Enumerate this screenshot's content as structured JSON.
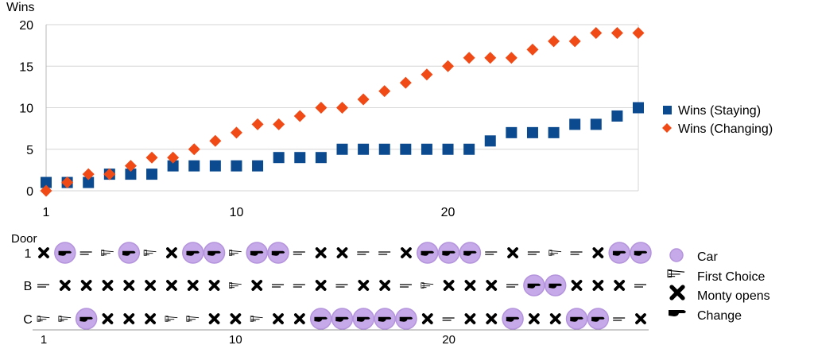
{
  "chart_data": [
    {
      "type": "scatter",
      "ylabel": "Wins",
      "xlim": [
        1,
        29
      ],
      "ylim": [
        0,
        20
      ],
      "xticks": [
        1,
        10,
        20
      ],
      "yticks": [
        0,
        5,
        10,
        15,
        20
      ],
      "grid": "horizontal",
      "legend_position": "right",
      "x": [
        1,
        2,
        3,
        4,
        5,
        6,
        7,
        8,
        9,
        10,
        11,
        12,
        13,
        14,
        15,
        16,
        17,
        18,
        19,
        20,
        21,
        22,
        23,
        24,
        25,
        26,
        27,
        28,
        29
      ],
      "series": [
        {
          "name": "Wins (Staying)",
          "marker": "square",
          "color": "#0b4a8f",
          "values": [
            1,
            1,
            1,
            2,
            2,
            2,
            3,
            3,
            3,
            3,
            3,
            4,
            4,
            4,
            5,
            5,
            5,
            5,
            5,
            5,
            5,
            6,
            7,
            7,
            7,
            8,
            8,
            9,
            10
          ]
        },
        {
          "name": "Wins (Changing)",
          "marker": "diamond",
          "color": "#f04a17",
          "values": [
            0,
            1,
            2,
            2,
            3,
            4,
            4,
            5,
            6,
            7,
            8,
            8,
            9,
            10,
            10,
            11,
            12,
            13,
            14,
            15,
            16,
            16,
            16,
            17,
            18,
            18,
            19,
            19,
            19
          ]
        }
      ]
    },
    {
      "type": "table",
      "ylabel": "Door",
      "row_labels": [
        "1",
        "B",
        "C"
      ],
      "xticks": [
        1,
        10,
        20
      ],
      "xlim": [
        1,
        29
      ],
      "colors": {
        "car": "#c6a9e8",
        "car_edge": "#b494dc"
      },
      "legend": [
        {
          "key": "car",
          "label": "Car"
        },
        {
          "key": "first",
          "label": "First Choice"
        },
        {
          "key": "monty",
          "label": "Monty opens"
        },
        {
          "key": "change",
          "label": "Change"
        }
      ],
      "rounds": [
        [
          "XCF",
          "CC",
          "FC"
        ],
        [
          "CCC",
          "XF",
          "FCF"
        ],
        [
          "F",
          "X",
          "CCC"
        ],
        [
          "CF",
          "XC",
          "CXF"
        ],
        [
          "CCC",
          "FX",
          "X"
        ],
        [
          "CFC",
          "X",
          "XF"
        ],
        [
          "CX",
          "X",
          "FCC"
        ],
        [
          "CCC",
          "X",
          "CCF"
        ],
        [
          "CCC",
          "XFF",
          "XC"
        ],
        [
          "CF",
          "FCCC",
          "X"
        ],
        [
          "CCC",
          "X",
          "CF"
        ],
        [
          "CCC",
          "CC",
          "X"
        ],
        [
          "F",
          "CC",
          "X"
        ],
        [
          "X",
          "XC",
          "CCC"
        ],
        [
          "X",
          "CC",
          "CCC"
        ],
        [
          "F",
          "CX",
          "CCC"
        ],
        [
          "F",
          "XC",
          "CCC"
        ],
        [
          "XC",
          "CC",
          "CCC"
        ],
        [
          "CCC",
          "CCF",
          "X"
        ],
        [
          "CCC",
          "X",
          "F"
        ],
        [
          "CCC",
          "X",
          "XC"
        ],
        [
          "CC",
          "X",
          "XC"
        ],
        [
          "CX",
          "C",
          "CCC"
        ],
        [
          "CC",
          "CCC",
          "X"
        ],
        [
          "FC",
          "CCC",
          "X"
        ],
        [
          "CC",
          "X",
          "CCC"
        ],
        [
          "X",
          "CX",
          "CCC"
        ],
        [
          "CCC",
          "XF",
          "CC"
        ],
        [
          "CCC",
          "CC",
          "X"
        ]
      ]
    }
  ]
}
